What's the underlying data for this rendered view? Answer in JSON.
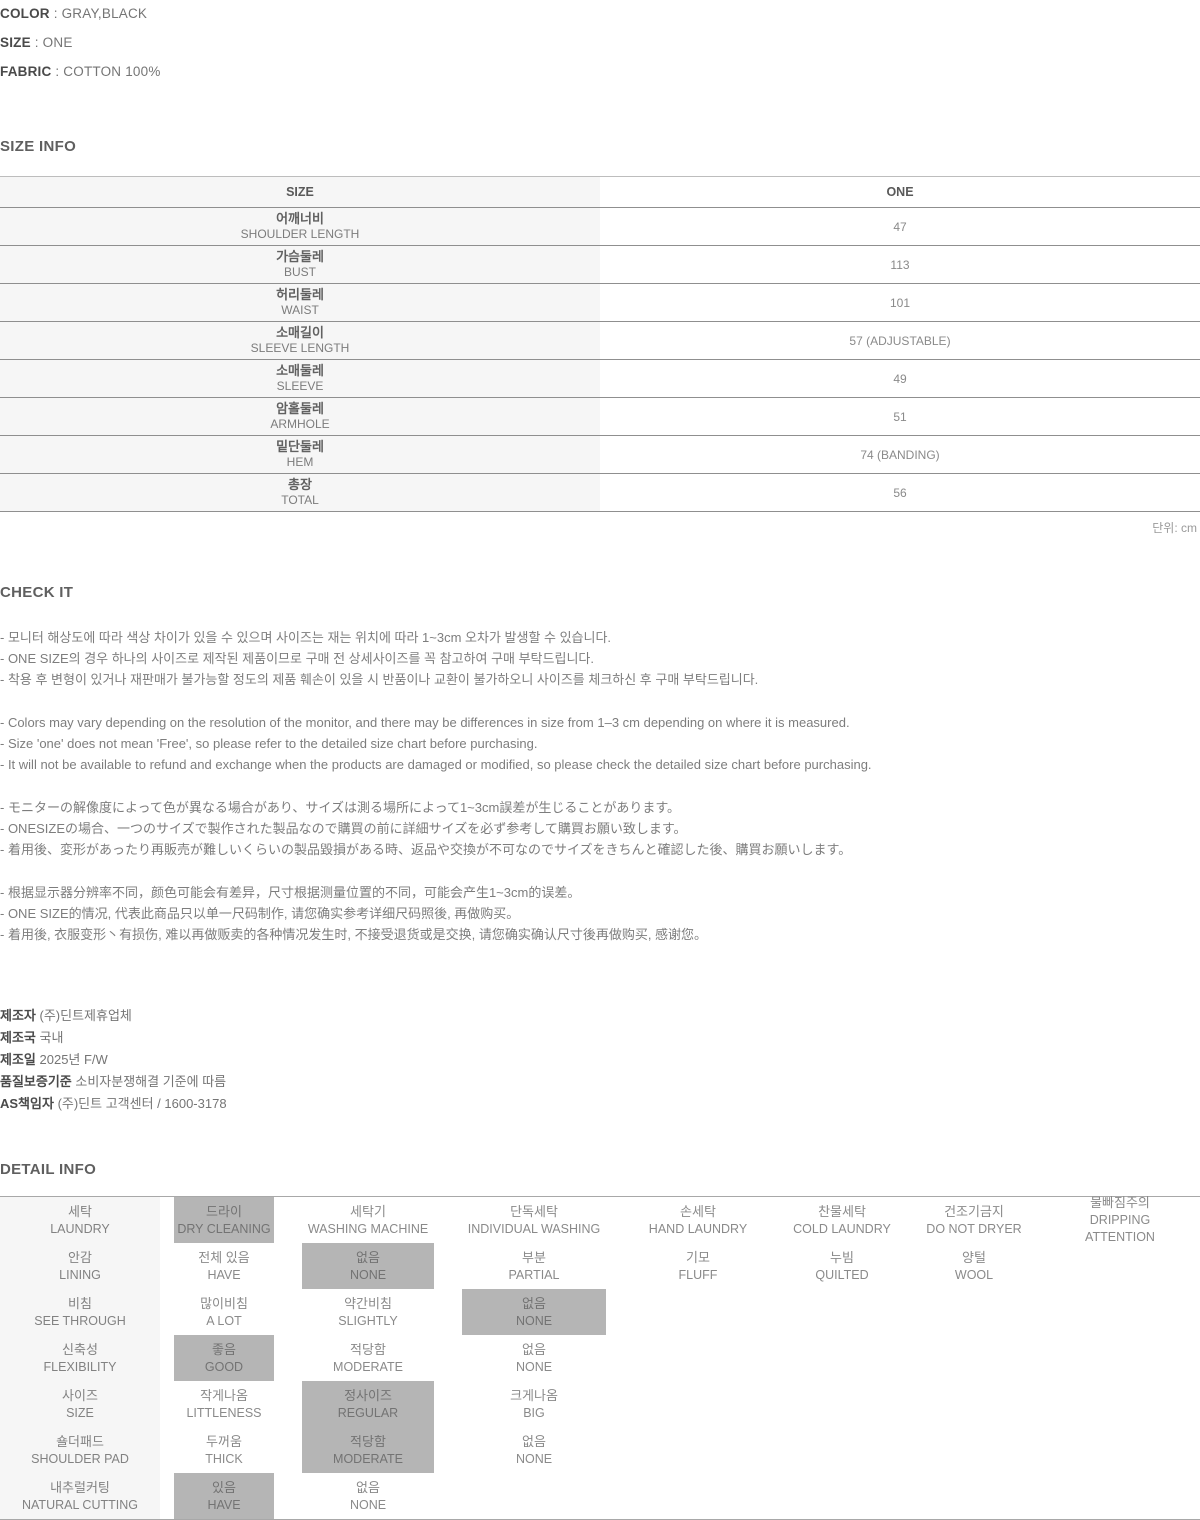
{
  "top_specs": [
    {
      "label": "COLOR",
      "value": " : GRAY,BLACK"
    },
    {
      "label": "SIZE",
      "value": " : ONE"
    },
    {
      "label": "FABRIC",
      "value": " : COTTON 100%"
    }
  ],
  "size_info": {
    "title": "SIZE INFO",
    "unit_note": "단위: cm",
    "header": {
      "size": "SIZE",
      "one": "ONE"
    },
    "rows": [
      {
        "kr": "어깨너비",
        "en": "SHOULDER LENGTH",
        "value": "47"
      },
      {
        "kr": "가슴둘레",
        "en": "BUST",
        "value": "113"
      },
      {
        "kr": "허리둘레",
        "en": "WAIST",
        "value": "101"
      },
      {
        "kr": "소매길이",
        "en": "SLEEVE LENGTH",
        "value": "57 (ADJUSTABLE)"
      },
      {
        "kr": "소매둘레",
        "en": "SLEEVE",
        "value": "49"
      },
      {
        "kr": "암홀둘레",
        "en": "ARMHOLE",
        "value": "51"
      },
      {
        "kr": "밑단둘레",
        "en": "HEM",
        "value": "74 (BANDING)"
      },
      {
        "kr": "총장",
        "en": "TOTAL",
        "value": "56"
      }
    ]
  },
  "check_it": {
    "title": "CHECK IT",
    "kr": [
      "- 모니터 해상도에 따라 색상 차이가 있을 수 있으며 사이즈는 재는 위치에 따라 1~3cm 오차가 발생할 수 있습니다.",
      "- ONE SIZE의 경우 하나의 사이즈로 제작된 제품이므로 구매 전 상세사이즈를 꼭 참고하여 구매 부탁드립니다.",
      "- 착용 후 변형이 있거나 재판매가 불가능할 정도의 제품 훼손이 있을 시 반품이나 교환이 불가하오니 사이즈를 체크하신 후 구매 부탁드립니다."
    ],
    "en": [
      "- Colors may vary depending on the resolution of the monitor, and there may be differences in size from 1–3 cm depending on where it is measured.",
      "- Size 'one' does not mean 'Free', so please refer to the detailed size chart before purchasing.",
      "- It will not be available to refund and exchange when the products are damaged or modified, so please check the detailed size chart before purchasing."
    ],
    "jp": [
      "- モニターの解像度によって色が異なる場合があり、サイズは測る場所によって1~3cm誤差が生じることがあります。",
      "- ONESIZEの場合、一つのサイズで製作された製品なので購買の前に詳細サイズを必ず参考して購買お願い致します。",
      "- 着用後、変形があったり再販売が難しいくらいの製品毀損がある時、返品や交換が不可なのでサイズをきちんと確認した後、購買お願いします。"
    ],
    "cn": [
      "- 根据显示器分辨率不同，颜色可能会有差异，尺寸根据测量位置的不同，可能会产生1~3cm的误差。",
      "- ONE SIZE的情况, 代表此商品只以单一尺码制作, 请您确实参考详细尺码照後, 再做购买。",
      "- 着用後, 衣服变形丶有损伤, 难以再做贩卖的各种情况发生时, 不接受退货或是交换, 请您确实确认尺寸後再做购买, 感谢您。"
    ]
  },
  "manufacturer": [
    {
      "label": "제조자",
      "value": " (주)딘트제휴업체"
    },
    {
      "label": "제조국",
      "value": " 국내"
    },
    {
      "label": "제조일",
      "value": " 2025년 F/W"
    },
    {
      "label": "품질보증기준",
      "value": " 소비자분쟁해결 기준에 따름"
    },
    {
      "label": "AS책임자",
      "value": " (주)딘트 고객센터 / 1600-3178"
    }
  ],
  "detail_info": {
    "title": "DETAIL INFO",
    "rows": [
      {
        "label_kr": "세탁",
        "label_en": "LAUNDRY",
        "options": [
          {
            "kr": "드라이",
            "en": "DRY CLEANING",
            "selected": true
          },
          {
            "kr": "세탁기",
            "en": "WASHING MACHINE",
            "selected": false
          },
          {
            "kr": "단독세탁",
            "en": "INDIVIDUAL WASHING",
            "selected": false
          },
          {
            "kr": "손세탁",
            "en": "HAND LAUNDRY",
            "selected": false
          },
          {
            "kr": "찬물세탁",
            "en": "COLD LAUNDRY",
            "selected": false
          },
          {
            "kr": "건조기금지",
            "en": "DO NOT DRYER",
            "selected": false
          },
          {
            "kr": "물빠짐주의",
            "en": "DRIPPING ATTENTION",
            "selected": false
          }
        ]
      },
      {
        "label_kr": "안감",
        "label_en": "LINING",
        "options": [
          {
            "kr": "전체 있음",
            "en": "HAVE",
            "selected": false
          },
          {
            "kr": "없음",
            "en": "NONE",
            "selected": true
          },
          {
            "kr": "부분",
            "en": "PARTIAL",
            "selected": false
          },
          {
            "kr": "기모",
            "en": "FLUFF",
            "selected": false
          },
          {
            "kr": "누빔",
            "en": "QUILTED",
            "selected": false
          },
          {
            "kr": "양털",
            "en": "WOOL",
            "selected": false
          }
        ]
      },
      {
        "label_kr": "비침",
        "label_en": "SEE THROUGH",
        "options": [
          {
            "kr": "많이비침",
            "en": "A LOT",
            "selected": false
          },
          {
            "kr": "약간비침",
            "en": "SLIGHTLY",
            "selected": false
          },
          {
            "kr": "없음",
            "en": "NONE",
            "selected": true
          }
        ]
      },
      {
        "label_kr": "신축성",
        "label_en": "FLEXIBILITY",
        "options": [
          {
            "kr": "좋음",
            "en": "GOOD",
            "selected": true
          },
          {
            "kr": "적당함",
            "en": "MODERATE",
            "selected": false
          },
          {
            "kr": "없음",
            "en": "NONE",
            "selected": false
          }
        ]
      },
      {
        "label_kr": "사이즈",
        "label_en": "SIZE",
        "options": [
          {
            "kr": "작게나옴",
            "en": "LITTLENESS",
            "selected": false
          },
          {
            "kr": "정사이즈",
            "en": "REGULAR",
            "selected": true
          },
          {
            "kr": "크게나옴",
            "en": "BIG",
            "selected": false
          }
        ]
      },
      {
        "label_kr": "숄더패드",
        "label_en": "SHOULDER PAD",
        "options": [
          {
            "kr": "두꺼움",
            "en": "THICK",
            "selected": false
          },
          {
            "kr": "적당함",
            "en": "MODERATE",
            "selected": true
          },
          {
            "kr": "없음",
            "en": "NONE",
            "selected": false
          }
        ]
      },
      {
        "label_kr": "내추럴커팅",
        "label_en": "NATURAL CUTTING",
        "options": [
          {
            "kr": "있음",
            "en": "HAVE",
            "selected": true
          },
          {
            "kr": "없음",
            "en": "NONE",
            "selected": false
          }
        ]
      }
    ]
  }
}
